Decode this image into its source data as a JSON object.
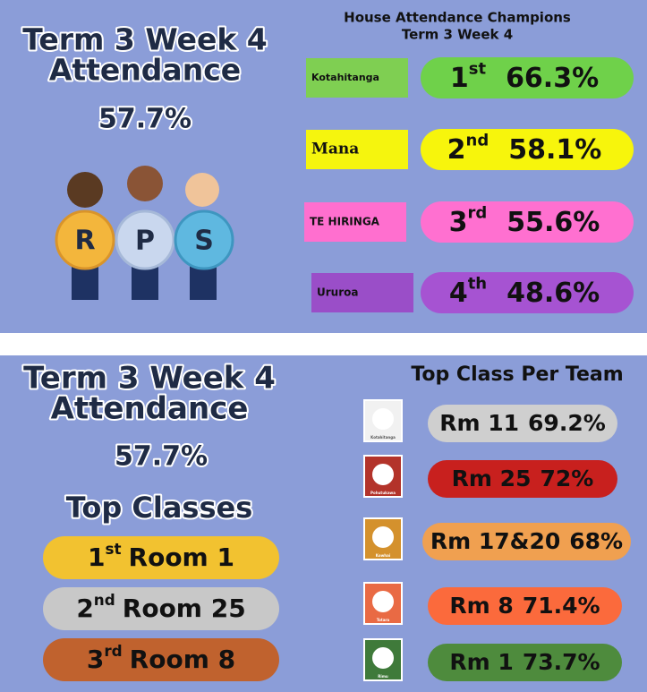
{
  "top": {
    "title_line1": "Term 3 Week 4",
    "title_line2": "Attendance",
    "attendance": "57.7%",
    "letters": [
      "R",
      "P",
      "S"
    ],
    "champions": {
      "title": "House Attendance Champions",
      "subtitle": "Term 3 Week 4",
      "houses": [
        {
          "name": "Kotahitanga",
          "rank": "1",
          "suffix": "st",
          "percent": "66.3%"
        },
        {
          "name": "Mana",
          "rank": "2",
          "suffix": "nd",
          "percent": "58.1%"
        },
        {
          "name": "TE HIRINGA",
          "rank": "3",
          "suffix": "rd",
          "percent": "55.6%"
        },
        {
          "name": "Ururoa",
          "rank": "4",
          "suffix": "th",
          "percent": "48.6%"
        }
      ]
    }
  },
  "bottom": {
    "title_line1": "Term 3 Week 4",
    "title_line2": "Attendance",
    "attendance": "57.7%",
    "top_classes_title": "Top Classes",
    "top_classes": [
      {
        "rank": "1",
        "suffix": "st",
        "room": "Room 1"
      },
      {
        "rank": "2",
        "suffix": "nd",
        "room": "Room 25"
      },
      {
        "rank": "3",
        "suffix": "rd",
        "room": "Room 8"
      }
    ],
    "per_team": {
      "title": "Top Class Per Team",
      "teams": [
        {
          "team": "Kotahitanga",
          "room": "Rm 11",
          "percent": "69.2%"
        },
        {
          "team": "Pohutukawa",
          "room": "Rm 25",
          "percent": "72%"
        },
        {
          "team": "Kowhai",
          "room": "Rm 17&20",
          "percent": "68%"
        },
        {
          "team": "Totara",
          "room": "Rm 8",
          "percent": "71.4%"
        },
        {
          "team": "Rimu",
          "room": "Rm 1",
          "percent": "73.7%"
        }
      ]
    }
  }
}
